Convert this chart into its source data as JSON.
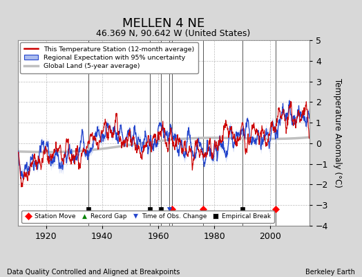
{
  "title": "MELLEN 4 NE",
  "subtitle": "46.369 N, 90.642 W (United States)",
  "xlabel_note": "Data Quality Controlled and Aligned at Breakpoints",
  "credit": "Berkeley Earth",
  "ylabel": "Temperature Anomaly (°C)",
  "ylim": [
    -4,
    5
  ],
  "xlim": [
    1910,
    2014
  ],
  "yticks": [
    -4,
    -3,
    -2,
    -1,
    0,
    1,
    2,
    3,
    4,
    5
  ],
  "xticks": [
    1920,
    1940,
    1960,
    1980,
    2000
  ],
  "bg_color": "#d8d8d8",
  "plot_bg": "#ffffff",
  "station_moves": [
    1965,
    1976,
    2002
  ],
  "empirical_breaks": [
    1935,
    1957,
    1961,
    1990
  ],
  "obs_changes": [
    1964
  ],
  "record_gaps": [],
  "title_fontsize": 13,
  "subtitle_fontsize": 9,
  "seed": 42
}
